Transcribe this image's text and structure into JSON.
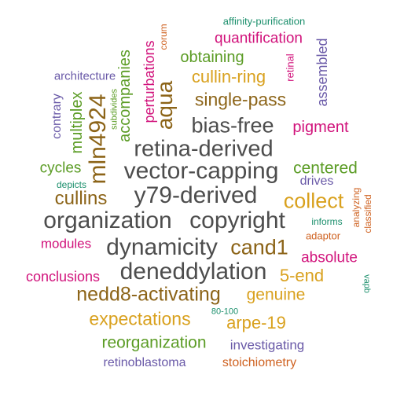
{
  "palette": {
    "dark_gray": "#4d4d4d",
    "gold": "#d9a11e",
    "brown": "#8c6418",
    "green": "#5b9c25",
    "magenta": "#d1127b",
    "purple": "#6a5aa8",
    "orange": "#cf6221",
    "teal": "#1b8f6c"
  },
  "words": [
    {
      "text": "affinity-purification",
      "color": "#1b8f6c"
    },
    {
      "text": "corum",
      "color": "#cf6221"
    },
    {
      "text": "quantification",
      "color": "#d1127b"
    },
    {
      "text": "perturbations",
      "color": "#d1127b"
    },
    {
      "text": "accompanies",
      "color": "#5b9c25"
    },
    {
      "text": "obtaining",
      "color": "#5b9c25"
    },
    {
      "text": "retinal",
      "color": "#d1127b"
    },
    {
      "text": "assembled",
      "color": "#6a5aa8"
    },
    {
      "text": "architecture",
      "color": "#6a5aa8"
    },
    {
      "text": "subdivides",
      "color": "#5b9c25"
    },
    {
      "text": "aqua",
      "color": "#8c6418"
    },
    {
      "text": "cullin-ring",
      "color": "#d9a11e"
    },
    {
      "text": "multiplex",
      "color": "#5b9c25"
    },
    {
      "text": "mln4924",
      "color": "#8c6418"
    },
    {
      "text": "single-pass",
      "color": "#8c6418"
    },
    {
      "text": "contrary",
      "color": "#6a5aa8"
    },
    {
      "text": "bias-free",
      "color": "#4d4d4d"
    },
    {
      "text": "pigment",
      "color": "#d1127b"
    },
    {
      "text": "retina-derived",
      "color": "#4d4d4d"
    },
    {
      "text": "cycles",
      "color": "#5b9c25"
    },
    {
      "text": "vector-capping",
      "color": "#4d4d4d"
    },
    {
      "text": "centered",
      "color": "#5b9c25"
    },
    {
      "text": "depicts",
      "color": "#1b8f6c"
    },
    {
      "text": "drives",
      "color": "#6a5aa8"
    },
    {
      "text": "cullins",
      "color": "#8c6418"
    },
    {
      "text": "y79-derived",
      "color": "#4d4d4d"
    },
    {
      "text": "collect",
      "color": "#d9a11e"
    },
    {
      "text": "analyzing",
      "color": "#cf6221"
    },
    {
      "text": "classified",
      "color": "#cf6221"
    },
    {
      "text": "informs",
      "color": "#1b8f6c"
    },
    {
      "text": "organization",
      "color": "#4d4d4d"
    },
    {
      "text": "copyright",
      "color": "#4d4d4d"
    },
    {
      "text": "adaptor",
      "color": "#cf6221"
    },
    {
      "text": "modules",
      "color": "#d1127b"
    },
    {
      "text": "dynamicity",
      "color": "#4d4d4d"
    },
    {
      "text": "cand1",
      "color": "#8c6418"
    },
    {
      "text": "absolute",
      "color": "#d1127b"
    },
    {
      "text": "vapb",
      "color": "#1b8f6c"
    },
    {
      "text": "conclusions",
      "color": "#d1127b"
    },
    {
      "text": "deneddylation",
      "color": "#4d4d4d"
    },
    {
      "text": "5-end",
      "color": "#d9a11e"
    },
    {
      "text": "nedd8-activating",
      "color": "#8c6418"
    },
    {
      "text": "genuine",
      "color": "#d9a11e"
    },
    {
      "text": "80-100",
      "color": "#1b8f6c"
    },
    {
      "text": "expectations",
      "color": "#d9a11e"
    },
    {
      "text": "arpe-19",
      "color": "#d9a11e"
    },
    {
      "text": "reorganization",
      "color": "#5b9c25"
    },
    {
      "text": "investigating",
      "color": "#6a5aa8"
    },
    {
      "text": "retinoblastoma",
      "color": "#6a5aa8"
    },
    {
      "text": "stoichiometry",
      "color": "#cf6221"
    }
  ]
}
